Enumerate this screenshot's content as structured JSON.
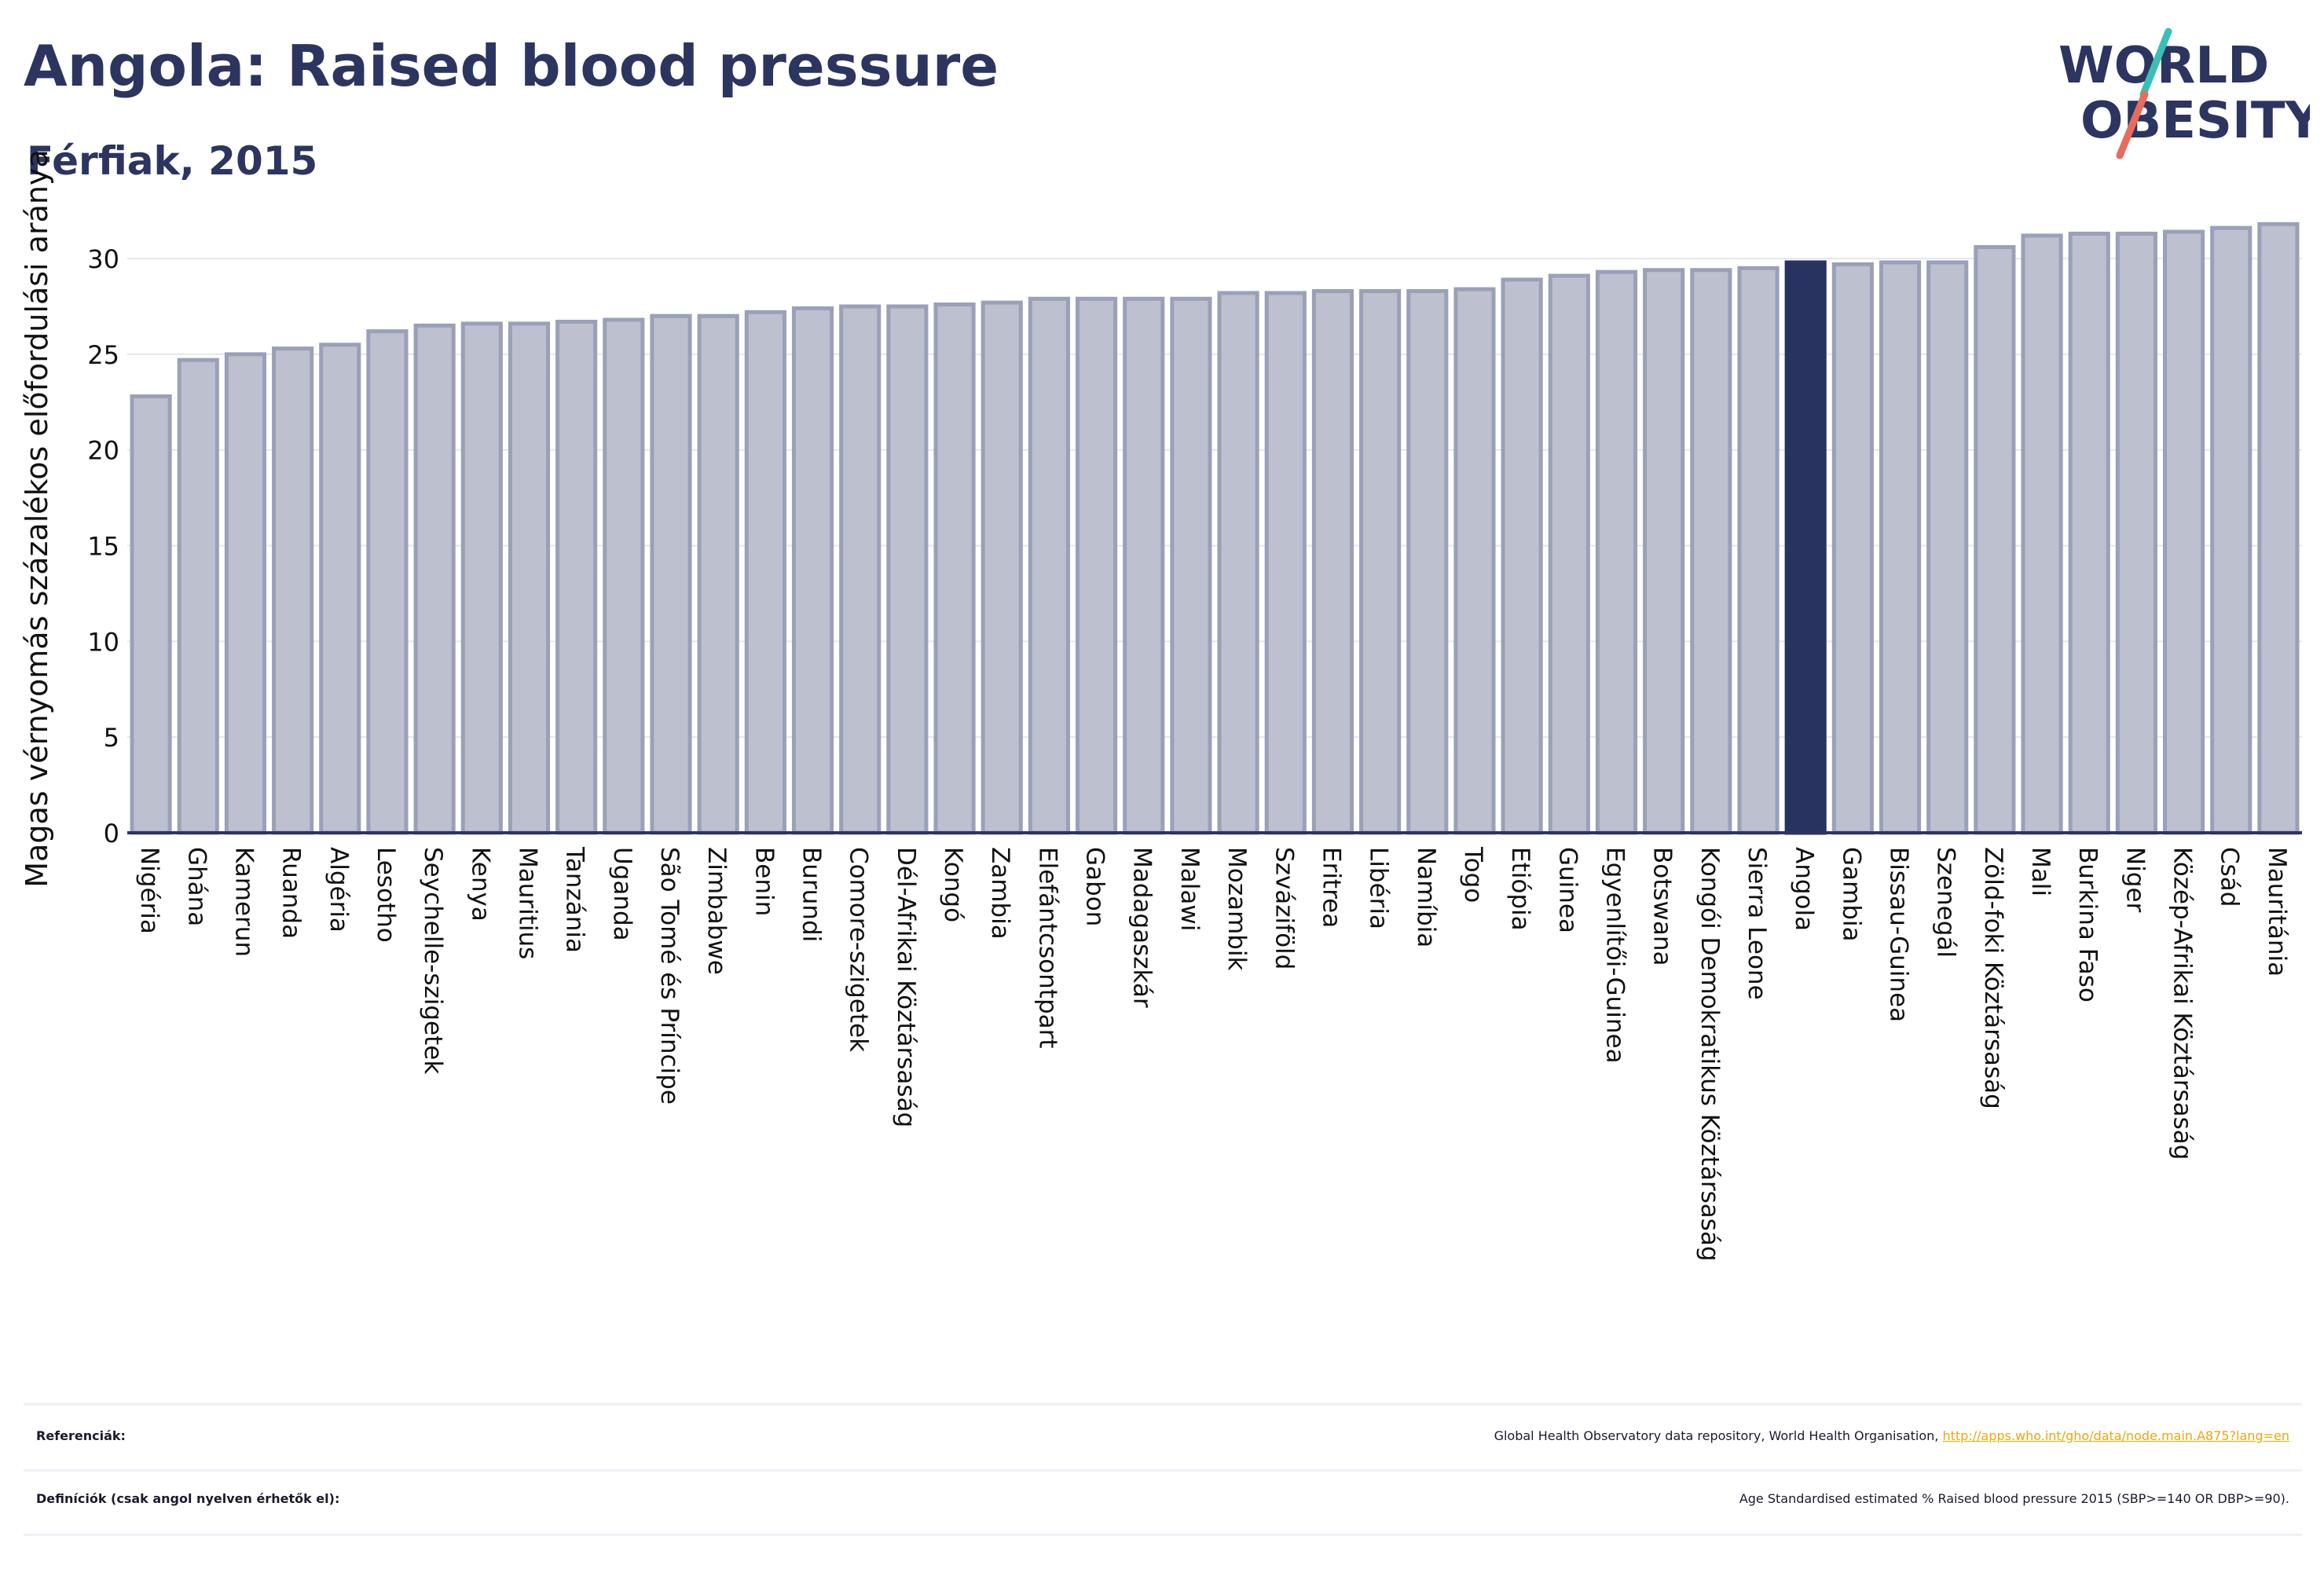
{
  "header": {
    "title": "Angola: Raised blood pressure",
    "subtitle": "Férfiak, 2015"
  },
  "logo": {
    "line1": "WORLD",
    "line2": "OBESITY",
    "text_color": "#2b3560",
    "slash_colors": [
      "#3bbfb5",
      "#e86b5c"
    ]
  },
  "colors": {
    "bar_default": "#bcc0cf",
    "bar_border": "#9aa0b8",
    "bar_highlight": "#283360",
    "axis": "#2b3560",
    "grid": "#e4e6ee"
  },
  "chart_data": {
    "type": "bar",
    "title": "Angola: Raised blood pressure",
    "subtitle": "Férfiak, 2015",
    "xlabel": "",
    "ylabel": "Magas vérnyomás százalékos előfordulási aránya",
    "ylim": [
      0,
      33
    ],
    "yticks": [
      0,
      5,
      10,
      15,
      20,
      25,
      30
    ],
    "grid": true,
    "highlight": "Angola",
    "categories": [
      "Nigéria",
      "Ghána",
      "Kamerun",
      "Ruanda",
      "Algéria",
      "Lesotho",
      "Seychelle-szigetek",
      "Kenya",
      "Mauritius",
      "Tanzánia",
      "Uganda",
      "São Tomé és Príncipe",
      "Zimbabwe",
      "Benin",
      "Burundi",
      "Comore-szigetek",
      "Dél-Afrikai Köztársaság",
      "Kongó",
      "Zambia",
      "Elefántcsontpart",
      "Gabon",
      "Madagaszkár",
      "Malawi",
      "Mozambik",
      "Szváziföld",
      "Eritrea",
      "Libéria",
      "Namíbia",
      "Togo",
      "Etiópia",
      "Guinea",
      "Egyenlítői-Guinea",
      "Botswana",
      "Kongói Demokratikus Köztársaság",
      "Sierra Leone",
      "Angola",
      "Gambia",
      "Bissau-Guinea",
      "Szenegál",
      "Zöld-foki Köztársaság",
      "Mali",
      "Burkina Faso",
      "Niger",
      "Közép-Afrikai Köztársaság",
      "Csád",
      "Mauritánia"
    ],
    "values": [
      22.8,
      24.7,
      25.0,
      25.3,
      25.5,
      26.2,
      26.5,
      26.6,
      26.6,
      26.7,
      26.8,
      27.0,
      27.0,
      27.2,
      27.4,
      27.5,
      27.5,
      27.6,
      27.7,
      27.9,
      27.9,
      27.9,
      27.9,
      28.2,
      28.2,
      28.3,
      28.3,
      28.3,
      28.4,
      28.9,
      29.1,
      29.3,
      29.4,
      29.4,
      29.5,
      29.8,
      29.7,
      29.8,
      29.8,
      30.6,
      31.2,
      31.3,
      31.3,
      31.4,
      31.6,
      31.8
    ]
  },
  "footer": {
    "references_label": "Referenciák:",
    "references_text": "Global Health Observatory data repository, World Health Organisation,",
    "references_link": "http://apps.who.int/gho/data/node.main.A875?lang=en",
    "definitions_label": "Definíciók (csak angol nyelven érhetők el):",
    "definitions_text": "Age Standardised estimated % Raised blood pressure 2015 (SBP>=140 OR DBP>=90)."
  }
}
